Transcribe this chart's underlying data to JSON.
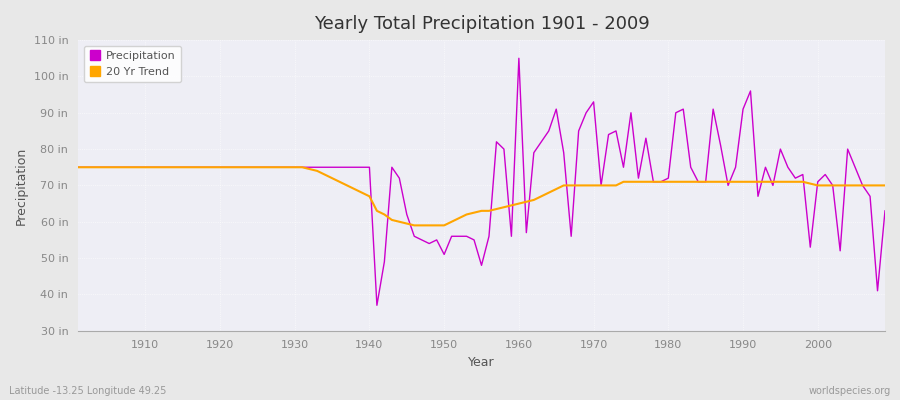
{
  "title": "Yearly Total Precipitation 1901 - 2009",
  "xlabel": "Year",
  "ylabel": "Precipitation",
  "bottom_left": "Latitude -13.25 Longitude 49.25",
  "bottom_right": "worldspecies.org",
  "fig_bg_color": "#e8e8e8",
  "plot_bg_color": "#eeeef5",
  "grid_color": "#ffffff",
  "precip_color": "#cc00cc",
  "trend_color": "#ffa500",
  "legend_marker_precip": "#9900aa",
  "legend_marker_trend": "#ffa500",
  "ylim": [
    30,
    110
  ],
  "yticks": [
    30,
    40,
    50,
    60,
    70,
    80,
    90,
    100,
    110
  ],
  "ytick_labels": [
    "30 in",
    "40 in",
    "50 in",
    "60 in",
    "70 in",
    "80 in",
    "90 in",
    "100 in",
    "110 in"
  ],
  "xticks": [
    1910,
    1920,
    1930,
    1940,
    1950,
    1960,
    1970,
    1980,
    1990,
    2000
  ],
  "xlim": [
    1901,
    2009
  ],
  "years": [
    1901,
    1902,
    1903,
    1904,
    1905,
    1906,
    1907,
    1908,
    1909,
    1910,
    1911,
    1912,
    1913,
    1914,
    1915,
    1916,
    1917,
    1918,
    1919,
    1920,
    1921,
    1922,
    1923,
    1924,
    1925,
    1926,
    1927,
    1928,
    1929,
    1930,
    1931,
    1932,
    1933,
    1934,
    1935,
    1936,
    1937,
    1938,
    1939,
    1940,
    1941,
    1942,
    1943,
    1944,
    1945,
    1946,
    1947,
    1948,
    1949,
    1950,
    1951,
    1952,
    1953,
    1954,
    1955,
    1956,
    1957,
    1958,
    1959,
    1960,
    1961,
    1962,
    1963,
    1964,
    1965,
    1966,
    1967,
    1968,
    1969,
    1970,
    1971,
    1972,
    1973,
    1974,
    1975,
    1976,
    1977,
    1978,
    1979,
    1980,
    1981,
    1982,
    1983,
    1984,
    1985,
    1986,
    1987,
    1988,
    1989,
    1990,
    1991,
    1992,
    1993,
    1994,
    1995,
    1996,
    1997,
    1998,
    1999,
    2000,
    2001,
    2002,
    2003,
    2004,
    2005,
    2006,
    2007,
    2008,
    2009
  ],
  "precip": [
    75,
    75,
    75,
    75,
    75,
    75,
    75,
    75,
    75,
    75,
    75,
    75,
    75,
    75,
    75,
    75,
    75,
    75,
    75,
    75,
    75,
    75,
    75,
    75,
    75,
    75,
    75,
    75,
    75,
    75,
    75,
    75,
    75,
    75,
    75,
    75,
    75,
    75,
    75,
    75,
    37,
    49,
    75,
    72,
    62,
    56,
    55,
    54,
    55,
    51,
    56,
    56,
    56,
    55,
    48,
    56,
    82,
    80,
    56,
    105,
    57,
    79,
    82,
    85,
    91,
    79,
    56,
    85,
    90,
    93,
    70,
    84,
    85,
    75,
    90,
    72,
    83,
    71,
    71,
    72,
    90,
    91,
    75,
    71,
    71,
    91,
    81,
    70,
    75,
    91,
    96,
    67,
    75,
    70,
    80,
    75,
    72,
    73,
    53,
    71,
    73,
    70,
    52,
    80,
    75,
    70,
    67,
    41,
    63
  ],
  "trend": [
    75,
    75,
    75,
    75,
    75,
    75,
    75,
    75,
    75,
    75,
    75,
    75,
    75,
    75,
    75,
    75,
    75,
    75,
    75,
    75,
    75,
    75,
    75,
    75,
    75,
    75,
    75,
    75,
    75,
    75,
    75,
    74.5,
    74,
    73,
    72,
    71,
    70,
    69,
    68,
    67,
    63,
    62,
    60.5,
    60,
    59.5,
    59,
    59,
    59,
    59,
    59,
    60,
    61,
    62,
    62.5,
    63,
    63,
    63.5,
    64,
    64.5,
    65,
    65.5,
    66,
    67,
    68,
    69,
    70,
    70,
    70,
    70,
    70,
    70,
    70,
    70,
    71,
    71,
    71,
    71,
    71,
    71,
    71,
    71,
    71,
    71,
    71,
    71,
    71,
    71,
    71,
    71,
    71,
    71,
    71,
    71,
    71,
    71,
    71,
    71,
    71,
    70.5,
    70,
    70,
    70,
    70,
    70,
    70,
    70,
    70,
    70,
    70
  ]
}
